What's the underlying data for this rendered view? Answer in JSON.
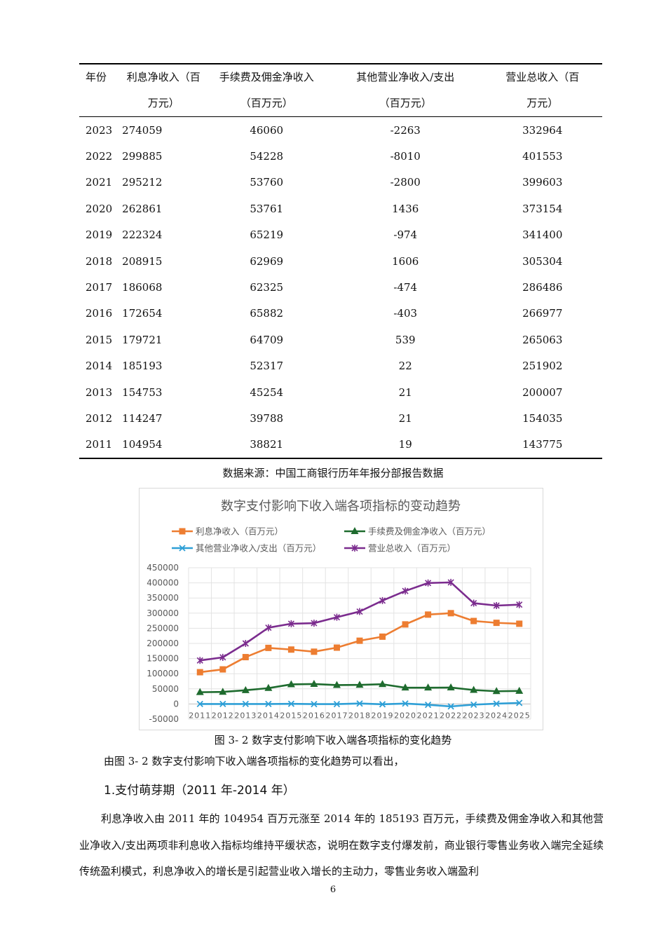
{
  "table": {
    "headers": [
      {
        "line1": "年份",
        "line2": ""
      },
      {
        "line1": "利息净收入（百",
        "line2": "万元）"
      },
      {
        "line1": "手续费及佣金净收入",
        "line2": "（百万元）"
      },
      {
        "line1": "其他营业净收入/支出",
        "line2": "（百万元）"
      },
      {
        "line1": "营业总收入（百",
        "line2": "万元）"
      }
    ],
    "rows": [
      {
        "year": "2023",
        "interest": "274059",
        "fee": "46060",
        "other": "-2263",
        "total": "332964"
      },
      {
        "year": "2022",
        "interest": "299885",
        "fee": "54228",
        "other": "-8010",
        "total": "401553"
      },
      {
        "year": "2021",
        "interest": "295212",
        "fee": "53760",
        "other": "-2800",
        "total": "399603"
      },
      {
        "year": "2020",
        "interest": "262861",
        "fee": "53761",
        "other": "1436",
        "total": "373154"
      },
      {
        "year": "2019",
        "interest": "222324",
        "fee": "65219",
        "other": "-974",
        "total": "341400"
      },
      {
        "year": "2018",
        "interest": "208915",
        "fee": "62969",
        "other": "1606",
        "total": "305304"
      },
      {
        "year": "2017",
        "interest": "186068",
        "fee": "62325",
        "other": "-474",
        "total": "286486"
      },
      {
        "year": "2016",
        "interest": "172654",
        "fee": "65882",
        "other": "-403",
        "total": "266977"
      },
      {
        "year": "2015",
        "interest": "179721",
        "fee": "64709",
        "other": "539",
        "total": "265063"
      },
      {
        "year": "2014",
        "interest": "185193",
        "fee": "52317",
        "other": "22",
        "total": "251902"
      },
      {
        "year": "2013",
        "interest": "154753",
        "fee": "45254",
        "other": "21",
        "total": "200007"
      },
      {
        "year": "2012",
        "interest": "114247",
        "fee": "39788",
        "other": "21",
        "total": "154035"
      },
      {
        "year": "2011",
        "interest": "104954",
        "fee": "38821",
        "other": "19",
        "total": "143775"
      }
    ]
  },
  "source_note": "数据来源：中国工商银行历年年报分部报告数据",
  "chart_data": {
    "type": "line",
    "title": "数字支付影响下收入端各项指标的变动趋势",
    "x": [
      "2011",
      "2012",
      "2013",
      "2014",
      "2015",
      "2016",
      "2017",
      "2018",
      "2019",
      "2020",
      "2021",
      "2022",
      "2023",
      "2024",
      "2025"
    ],
    "ylim": [
      -50000,
      450000
    ],
    "yticks": [
      "450000",
      "400000",
      "350000",
      "300000",
      "250000",
      "200000",
      "150000",
      "100000",
      "50000",
      "0",
      "-50000"
    ],
    "ytick_values": [
      450000,
      400000,
      350000,
      300000,
      250000,
      200000,
      150000,
      100000,
      50000,
      0,
      -50000
    ],
    "grid": true,
    "legend_position": "top",
    "series": [
      {
        "name": "利息净收入（百万元）",
        "color": "#ed7d31",
        "marker": "square",
        "values": [
          104954,
          114247,
          154753,
          185193,
          179721,
          172654,
          186068,
          208915,
          222324,
          262861,
          295212,
          299885,
          274059,
          268000,
          265000
        ]
      },
      {
        "name": "手续费及佣金净收入（百万元）",
        "color": "#1e6b2e",
        "marker": "triangle",
        "values": [
          38821,
          39788,
          45254,
          52317,
          64709,
          65882,
          62325,
          62969,
          65219,
          53761,
          53760,
          54228,
          46060,
          42000,
          43000
        ]
      },
      {
        "name": "其他营业净收入/支出（百万元）",
        "color": "#2e9fd6",
        "marker": "x",
        "values": [
          19,
          21,
          21,
          22,
          539,
          -403,
          -474,
          1606,
          -974,
          1436,
          -2800,
          -8010,
          -2263,
          1000,
          3500
        ]
      },
      {
        "name": "营业总收入（百万元）",
        "color": "#7b2c8e",
        "marker": "star",
        "values": [
          143775,
          154035,
          200007,
          251902,
          265063,
          266977,
          286486,
          305304,
          341400,
          373154,
          399603,
          401553,
          332964,
          325000,
          328000
        ]
      }
    ]
  },
  "caption": "图 3- 2 数字支付影响下收入端各项指标的变化趋势",
  "intro_text": "由图 3- 2 数字支付影响下收入端各项指标的变化趋势可以看出，",
  "section_title": "1.支付萌芽期（2011 年-2014 年）",
  "body_text": "利息净收入由 2011 年的 104954 百万元涨至 2014 年的 185193 百万元，手续费及佣金净收入和其他营业净收入/支出两项非利息收入指标均维持平缓状态，说明在数字支付爆发前，商业银行零售业务收入端完全延续传统盈利模式，利息净收入的增长是引起营业收入增长的主动力，零售业务收入端盈利",
  "page_number": "6"
}
